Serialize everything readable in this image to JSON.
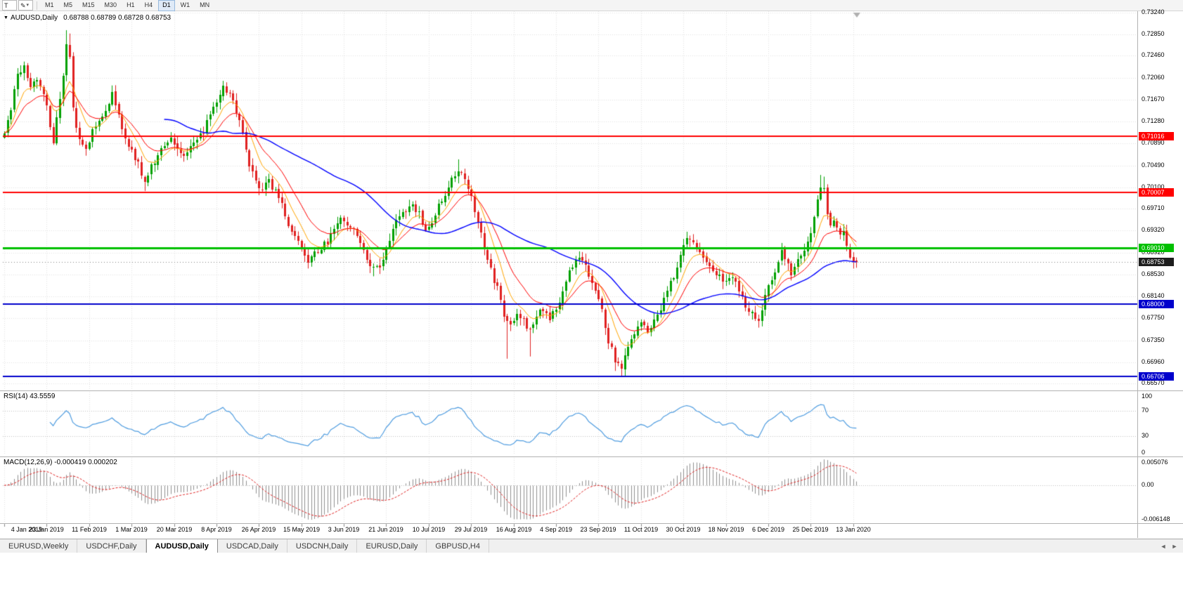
{
  "icons": {
    "chart_menu": "▼",
    "draw_tool": "✎",
    "dropdown": "▾",
    "tab_scroll_left": "◄",
    "tab_scroll_right": "►"
  },
  "toolbar": {
    "text_tool_label": "T",
    "timeframes": [
      "M1",
      "M5",
      "M15",
      "M30",
      "H1",
      "H4",
      "D1",
      "W1",
      "MN"
    ],
    "active_timeframe": "D1"
  },
  "chart": {
    "symbol_label": "AUDUSD,Daily",
    "ohlc": "0.68788 0.68789 0.68728 0.68753",
    "price_axis_labels": [
      "0.73240",
      "0.72850",
      "0.72460",
      "0.72060",
      "0.71670",
      "0.71280",
      "0.70890",
      "0.70490",
      "0.70100",
      "0.69710",
      "0.69320",
      "0.68920",
      "0.68530",
      "0.68140",
      "0.67750",
      "0.67350",
      "0.66960",
      "0.66570"
    ],
    "time_axis_labels": [
      "4 Jan 2019",
      "23 Jan 2019",
      "11 Feb 2019",
      "1 Mar 2019",
      "20 Mar 2019",
      "8 Apr 2019",
      "26 Apr 2019",
      "15 May 2019",
      "3 Jun 2019",
      "21 Jun 2019",
      "10 Jul 2019",
      "29 Jul 2019",
      "16 Aug 2019",
      "4 Sep 2019",
      "23 Sep 2019",
      "11 Oct 2019",
      "30 Oct 2019",
      "18 Nov 2019",
      "6 Dec 2019",
      "25 Dec 2019",
      "13 Jan 2020"
    ],
    "hlines": [
      {
        "value": 0.71016,
        "label": "0.71016",
        "color": "#ff0000",
        "width": 2
      },
      {
        "value": 0.70007,
        "label": "0.70007",
        "color": "#ff0000",
        "width": 2
      },
      {
        "value": 0.6901,
        "label": "0.69010",
        "color": "#00c000",
        "width": 3
      },
      {
        "value": 0.68,
        "label": "0.68000",
        "color": "#0000cc",
        "width": 2
      },
      {
        "value": 0.66706,
        "label": "0.66706",
        "color": "#0000cc",
        "width": 2
      }
    ],
    "current_price": {
      "value": 0.68753,
      "label": "0.68753",
      "badge_color": "#1d1d1d"
    },
    "colors": {
      "bull": "#00a000",
      "bear": "#e02020",
      "ma_fast": "#ffa500",
      "ma_mid": "#ff0000",
      "ma_slow": "#0000ff",
      "grid": "#e2e2e2",
      "level": "#c0c0c0",
      "rsi_line": "#4e9ce0",
      "macd_hist": "#909090",
      "macd_signal": "#e02020",
      "bid_line": "#848484",
      "shift_marker": "#b0b0b0"
    }
  },
  "chart_data": {
    "type": "candlestick",
    "symbol": "AUDUSD",
    "timeframe": "Daily",
    "bars": 262,
    "price_axis": {
      "max": 0.7326,
      "min": 0.6645
    },
    "bars_per_label": 13,
    "keypoints": [
      [
        0,
        0.7112
      ],
      [
        2,
        0.7145
      ],
      [
        4,
        0.7215
      ],
      [
        6,
        0.7225
      ],
      [
        8,
        0.719
      ],
      [
        10,
        0.7205
      ],
      [
        12,
        0.718
      ],
      [
        14,
        0.712
      ],
      [
        15,
        0.7085
      ],
      [
        16,
        0.7135
      ],
      [
        18,
        0.7215
      ],
      [
        19,
        0.7268
      ],
      [
        20,
        0.7242
      ],
      [
        21,
        0.715
      ],
      [
        23,
        0.7095
      ],
      [
        25,
        0.7075
      ],
      [
        27,
        0.711
      ],
      [
        29,
        0.7125
      ],
      [
        31,
        0.715
      ],
      [
        33,
        0.718
      ],
      [
        35,
        0.714
      ],
      [
        37,
        0.7095
      ],
      [
        39,
        0.7075
      ],
      [
        41,
        0.705
      ],
      [
        43,
        0.7018
      ],
      [
        45,
        0.7045
      ],
      [
        47,
        0.707
      ],
      [
        49,
        0.709
      ],
      [
        51,
        0.71
      ],
      [
        53,
        0.708
      ],
      [
        55,
        0.707
      ],
      [
        57,
        0.7085
      ],
      [
        59,
        0.7095
      ],
      [
        61,
        0.711
      ],
      [
        63,
        0.714
      ],
      [
        65,
        0.7165
      ],
      [
        67,
        0.719
      ],
      [
        69,
        0.7175
      ],
      [
        71,
        0.715
      ],
      [
        73,
        0.7105
      ],
      [
        75,
        0.705
      ],
      [
        77,
        0.7015
      ],
      [
        79,
        0.7008
      ],
      [
        81,
        0.7022
      ],
      [
        83,
        0.7
      ],
      [
        85,
        0.6975
      ],
      [
        87,
        0.6945
      ],
      [
        89,
        0.692
      ],
      [
        91,
        0.69
      ],
      [
        93,
        0.6872
      ],
      [
        95,
        0.689
      ],
      [
        97,
        0.6902
      ],
      [
        99,
        0.6912
      ],
      [
        101,
        0.6935
      ],
      [
        103,
        0.6958
      ],
      [
        105,
        0.6945
      ],
      [
        107,
        0.693
      ],
      [
        109,
        0.691
      ],
      [
        111,
        0.6885
      ],
      [
        113,
        0.6862
      ],
      [
        115,
        0.687
      ],
      [
        117,
        0.69
      ],
      [
        119,
        0.6935
      ],
      [
        121,
        0.696
      ],
      [
        123,
        0.6972
      ],
      [
        125,
        0.6975
      ],
      [
        127,
        0.696
      ],
      [
        129,
        0.6935
      ],
      [
        131,
        0.695
      ],
      [
        133,
        0.6975
      ],
      [
        135,
        0.7
      ],
      [
        137,
        0.7025
      ],
      [
        139,
        0.704
      ],
      [
        141,
        0.703
      ],
      [
        143,
        0.6995
      ],
      [
        145,
        0.695
      ],
      [
        147,
        0.69
      ],
      [
        149,
        0.6858
      ],
      [
        151,
        0.683
      ],
      [
        153,
        0.6775
      ],
      [
        155,
        0.676
      ],
      [
        157,
        0.6785
      ],
      [
        159,
        0.677
      ],
      [
        161,
        0.6755
      ],
      [
        163,
        0.678
      ],
      [
        165,
        0.679
      ],
      [
        167,
        0.6778
      ],
      [
        169,
        0.6785
      ],
      [
        171,
        0.682
      ],
      [
        173,
        0.6855
      ],
      [
        175,
        0.6875
      ],
      [
        177,
        0.6882
      ],
      [
        179,
        0.6855
      ],
      [
        181,
        0.6825
      ],
      [
        183,
        0.6788
      ],
      [
        185,
        0.6735
      ],
      [
        187,
        0.67
      ],
      [
        189,
        0.6685
      ],
      [
        191,
        0.672
      ],
      [
        193,
        0.6752
      ],
      [
        195,
        0.6765
      ],
      [
        197,
        0.6752
      ],
      [
        199,
        0.6772
      ],
      [
        201,
        0.6792
      ],
      [
        203,
        0.6822
      ],
      [
        205,
        0.6852
      ],
      [
        207,
        0.689
      ],
      [
        209,
        0.6922
      ],
      [
        211,
        0.6912
      ],
      [
        213,
        0.6892
      ],
      [
        215,
        0.6878
      ],
      [
        217,
        0.6862
      ],
      [
        219,
        0.685
      ],
      [
        221,
        0.6838
      ],
      [
        223,
        0.6852
      ],
      [
        225,
        0.6828
      ],
      [
        227,
        0.68
      ],
      [
        229,
        0.6782
      ],
      [
        231,
        0.6775
      ],
      [
        233,
        0.6812
      ],
      [
        235,
        0.6848
      ],
      [
        237,
        0.6878
      ],
      [
        238,
        0.6902
      ],
      [
        240,
        0.687
      ],
      [
        241,
        0.6855
      ],
      [
        243,
        0.6878
      ],
      [
        245,
        0.6898
      ],
      [
        247,
        0.6925
      ],
      [
        249,
        0.6985
      ],
      [
        250,
        0.7012
      ],
      [
        251,
        0.7002
      ],
      [
        252,
        0.6968
      ],
      [
        253,
        0.6945
      ],
      [
        254,
        0.6952
      ],
      [
        255,
        0.6938
      ],
      [
        256,
        0.692
      ],
      [
        257,
        0.693
      ],
      [
        258,
        0.6908
      ],
      [
        259,
        0.6888
      ],
      [
        260,
        0.688
      ],
      [
        261,
        0.68753
      ]
    ],
    "wick_lows": [
      [
        43,
        0.7003
      ],
      [
        93,
        0.6864
      ],
      [
        113,
        0.685
      ],
      [
        154,
        0.6702
      ],
      [
        161,
        0.6706
      ],
      [
        187,
        0.668
      ],
      [
        189,
        0.6671
      ],
      [
        231,
        0.6769
      ]
    ],
    "wick_highs": [
      [
        19,
        0.7292
      ],
      [
        20,
        0.7286
      ],
      [
        67,
        0.7201
      ],
      [
        139,
        0.706
      ],
      [
        209,
        0.693
      ],
      [
        250,
        0.7032
      ],
      [
        251,
        0.7029
      ]
    ],
    "moving_averages": [
      {
        "period": 8,
        "type": "ema",
        "color_key": "ma_fast"
      },
      {
        "period": 16,
        "type": "ema",
        "color_key": "ma_mid"
      },
      {
        "period": 50,
        "type": "sma",
        "color_key": "ma_slow"
      }
    ]
  },
  "rsi": {
    "label": "RSI(14) 43.5559",
    "period": 14,
    "current_value": 43.5559,
    "levels": [
      "100",
      "70",
      "30",
      "0"
    ]
  },
  "macd": {
    "label": "MACD(12,26,9) -0.000419 0.000202",
    "params": "12,26,9",
    "main_value": -0.000419,
    "signal_value": 0.000202,
    "axis_labels": [
      "0.005076",
      "0.00",
      "-0.006148"
    ]
  },
  "tabs": {
    "items": [
      "EURUSD,Weekly",
      "USDCHF,Daily",
      "AUDUSD,Daily",
      "USDCAD,Daily",
      "USDCNH,Daily",
      "EURUSD,Daily",
      "GBPUSD,H4"
    ],
    "active": "AUDUSD,Daily"
  }
}
